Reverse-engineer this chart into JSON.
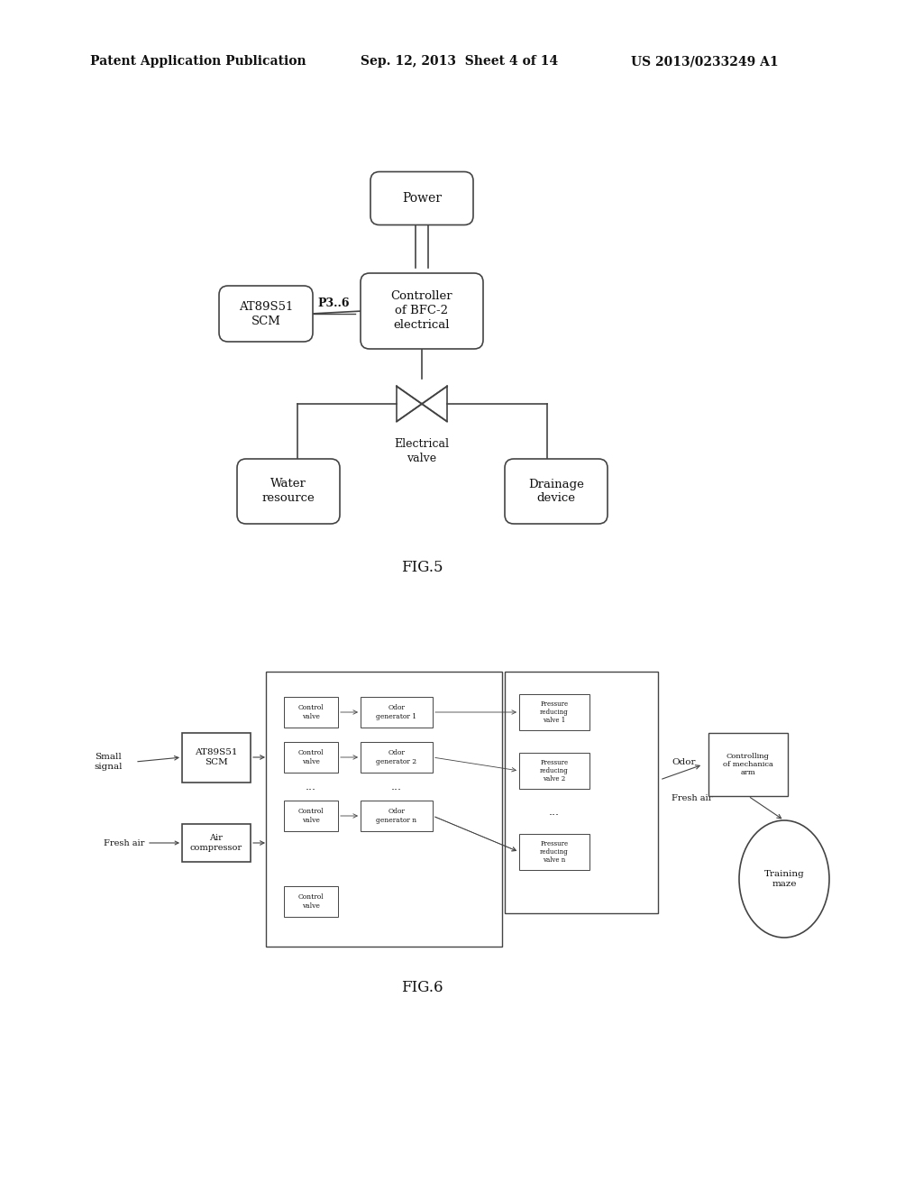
{
  "background_color": "#ffffff",
  "header_left": "Patent Application Publication",
  "header_mid": "Sep. 12, 2013  Sheet 4 of 14",
  "header_right": "US 2013/0233249 A1",
  "fig5_label": "FIG.5",
  "fig6_label": "FIG.6",
  "line_color": "#444444",
  "box_color": "#444444",
  "text_color": "#111111"
}
